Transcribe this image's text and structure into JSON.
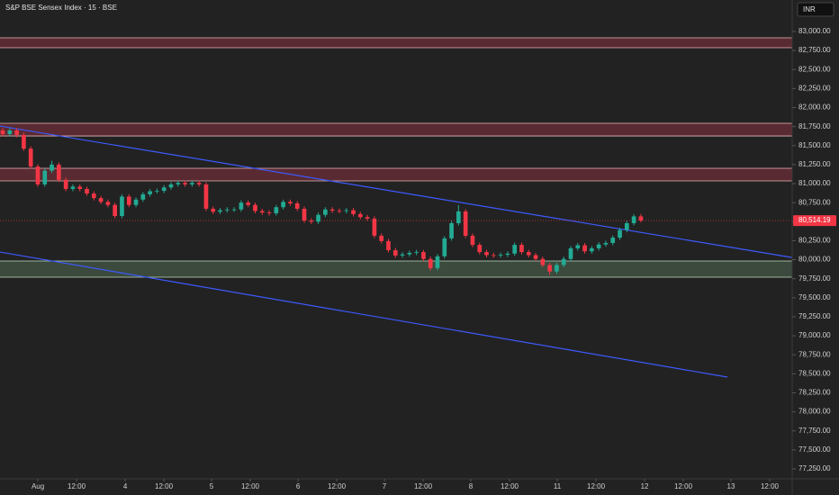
{
  "chart_data": {
    "type": "candlestick",
    "title": "S&P BSE Sensex Index · 15 · BSE",
    "currency": "INR",
    "x": [
      0,
      1,
      2,
      3,
      4,
      5,
      6,
      7,
      8,
      9,
      10,
      11,
      12,
      13,
      14,
      15,
      16,
      17,
      18,
      19,
      20,
      21,
      22,
      23,
      24,
      25,
      26,
      27,
      28,
      29,
      30,
      31,
      32,
      33,
      34,
      35,
      36,
      37,
      38,
      39,
      40,
      41,
      42,
      43,
      44,
      45,
      46,
      47,
      48,
      49,
      50,
      51,
      52,
      53,
      54,
      55,
      56,
      57,
      58,
      59,
      60,
      61,
      62,
      63,
      64,
      65,
      66,
      67,
      68,
      69,
      70,
      71,
      72,
      73,
      74,
      75,
      76,
      77,
      78,
      79,
      80,
      81,
      82,
      83,
      84,
      85,
      86,
      87,
      88,
      89,
      90,
      91
    ],
    "open": [
      81700,
      81650,
      81700,
      81640,
      81460,
      81225,
      80990,
      81170,
      81250,
      81050,
      80930,
      80960,
      80930,
      80870,
      80810,
      80760,
      80720,
      80575,
      80830,
      80720,
      80790,
      80860,
      80900,
      80905,
      80950,
      80990,
      81010,
      80990,
      81010,
      80990,
      80670,
      80630,
      80650,
      80660,
      80660,
      80750,
      80720,
      80640,
      80620,
      80610,
      80690,
      80760,
      80740,
      80670,
      80515,
      80500,
      80590,
      80660,
      80645,
      80640,
      80650,
      80600,
      80560,
      80540,
      80315,
      80245,
      80125,
      80055,
      80070,
      80090,
      80100,
      80010,
      79890,
      80045,
      80280,
      80480,
      80635,
      80315,
      80195,
      80100,
      80060,
      80055,
      80065,
      80080,
      80195,
      80100,
      80060,
      80010,
      79930,
      79845,
      79930,
      80010,
      80150,
      80190,
      80110,
      80150,
      80200,
      80220,
      80290,
      80390,
      80480,
      80570
    ],
    "high": [
      81730,
      81730,
      81730,
      81670,
      81490,
      81255,
      81200,
      81300,
      81280,
      81080,
      80990,
      80990,
      80960,
      80900,
      80840,
      80790,
      80750,
      80860,
      80860,
      80820,
      80890,
      80930,
      80935,
      80980,
      81020,
      81040,
      81040,
      81040,
      81040,
      81020,
      80700,
      80680,
      80690,
      80690,
      80780,
      80780,
      80750,
      80670,
      80650,
      80720,
      80790,
      80790,
      80770,
      80700,
      80545,
      80620,
      80690,
      80690,
      80675,
      80680,
      80680,
      80630,
      80590,
      80570,
      80345,
      80275,
      80155,
      80100,
      80120,
      80130,
      80130,
      80040,
      80075,
      80310,
      80510,
      80720,
      80665,
      80345,
      80225,
      80130,
      80090,
      80095,
      80110,
      80225,
      80225,
      80130,
      80090,
      80040,
      79960,
      79960,
      80040,
      80180,
      80220,
      80220,
      80180,
      80230,
      80250,
      80320,
      80420,
      80510,
      80600,
      80600
    ],
    "low": [
      81620,
      81620,
      81610,
      81430,
      81195,
      80960,
      80960,
      81140,
      81020,
      80900,
      80900,
      80900,
      80840,
      80780,
      80730,
      80690,
      80545,
      80545,
      80690,
      80690,
      80760,
      80830,
      80870,
      80875,
      80920,
      80960,
      80960,
      80960,
      80960,
      80640,
      80600,
      80600,
      80620,
      80630,
      80630,
      80690,
      80610,
      80590,
      80580,
      80580,
      80660,
      80710,
      80640,
      80485,
      80470,
      80470,
      80560,
      80615,
      80610,
      80610,
      80570,
      80530,
      80510,
      80285,
      80215,
      80095,
      80025,
      80025,
      80040,
      80060,
      79980,
      79860,
      79860,
      80015,
      80250,
      80450,
      80285,
      80165,
      80070,
      80030,
      80025,
      80025,
      80035,
      80050,
      80070,
      80030,
      79980,
      79900,
      79800,
      79815,
      79900,
      79980,
      80120,
      80080,
      80080,
      80120,
      80170,
      80190,
      80260,
      80360,
      80450,
      80490
    ],
    "close": [
      81650,
      81700,
      81640,
      81460,
      81225,
      80990,
      81170,
      81250,
      81050,
      80930,
      80960,
      80930,
      80870,
      80810,
      80760,
      80720,
      80575,
      80830,
      80720,
      80790,
      80860,
      80900,
      80905,
      80950,
      80990,
      81010,
      80990,
      81010,
      80990,
      80670,
      80630,
      80650,
      80660,
      80660,
      80750,
      80720,
      80640,
      80620,
      80610,
      80690,
      80760,
      80740,
      80670,
      80515,
      80500,
      80590,
      80660,
      80645,
      80640,
      80650,
      80600,
      80560,
      80540,
      80315,
      80245,
      80125,
      80055,
      80070,
      80090,
      80100,
      80010,
      79890,
      80045,
      80280,
      80480,
      80635,
      80315,
      80195,
      80100,
      80060,
      80055,
      80065,
      80080,
      80195,
      80100,
      80060,
      80010,
      79930,
      79845,
      79930,
      80010,
      80150,
      80190,
      80110,
      80150,
      80200,
      80220,
      80290,
      80390,
      80480,
      80570,
      80514.19
    ],
    "up_color": "#22ab94",
    "down_color": "#f23645",
    "xlim": [
      -0.39,
      112.58
    ],
    "ylim": [
      77120,
      83414
    ],
    "xticks": [
      {
        "value": 5.01,
        "label": "Aug"
      },
      {
        "value": 10.53,
        "label": "12:00"
      },
      {
        "value": 17.46,
        "label": "4"
      },
      {
        "value": 22.98,
        "label": "12:00"
      },
      {
        "value": 29.78,
        "label": "5"
      },
      {
        "value": 35.3,
        "label": "12:00"
      },
      {
        "value": 42.11,
        "label": "6"
      },
      {
        "value": 47.63,
        "label": "12:00"
      },
      {
        "value": 54.43,
        "label": "7"
      },
      {
        "value": 59.95,
        "label": "12:00"
      },
      {
        "value": 66.75,
        "label": "8"
      },
      {
        "value": 72.27,
        "label": "12:00"
      },
      {
        "value": 79.08,
        "label": "11"
      },
      {
        "value": 84.6,
        "label": "12:00"
      },
      {
        "value": 91.53,
        "label": "12"
      },
      {
        "value": 97.05,
        "label": "12:00"
      },
      {
        "value": 103.85,
        "label": "13"
      },
      {
        "value": 109.37,
        "label": "12:00"
      }
    ],
    "yticks": [
      {
        "value": 77250,
        "label": "77,250.00"
      },
      {
        "value": 77500,
        "label": "77,500.00"
      },
      {
        "value": 77750,
        "label": "77,750.00"
      },
      {
        "value": 78000,
        "label": "78,000.00"
      },
      {
        "value": 78250,
        "label": "78,250.00"
      },
      {
        "value": 78500,
        "label": "78,500.00"
      },
      {
        "value": 78750,
        "label": "78,750.00"
      },
      {
        "value": 79000,
        "label": "79,000.00"
      },
      {
        "value": 79250,
        "label": "79,250.00"
      },
      {
        "value": 79500,
        "label": "79,500.00"
      },
      {
        "value": 79750,
        "label": "79,750.00"
      },
      {
        "value": 80000,
        "label": "80,000.00"
      },
      {
        "value": 80250,
        "label": "80,250.00"
      },
      {
        "value": 80500,
        "label": "80,500.00"
      },
      {
        "value": 80750,
        "label": "80,750.00"
      },
      {
        "value": 81000,
        "label": "81,000.00"
      },
      {
        "value": 81250,
        "label": "81,250.00"
      },
      {
        "value": 81500,
        "label": "81,500.00"
      },
      {
        "value": 81750,
        "label": "81,750.00"
      },
      {
        "value": 82000,
        "label": "82,000.00"
      },
      {
        "value": 82250,
        "label": "82,250.00"
      },
      {
        "value": 82500,
        "label": "82,500.00"
      },
      {
        "value": 82750,
        "label": "82,750.00"
      },
      {
        "value": 83000,
        "label": "83,000.00"
      }
    ],
    "zones": [
      {
        "low": 82787,
        "high": 82917,
        "color": "#5a2a32",
        "border": "#e8b8b8"
      },
      {
        "low": 81627,
        "high": 81793,
        "color": "#5a2a32",
        "border": "#e8b8b8"
      },
      {
        "low": 81036,
        "high": 81202,
        "color": "#5a2a32",
        "border": "#e8b8b8"
      },
      {
        "low": 79770,
        "high": 79983,
        "color": "#3b4a3d",
        "border": "#c0dcc0"
      }
    ],
    "trendlines": [
      {
        "x": [
          -0.39,
          112.58
        ],
        "y": [
          81757,
          80029
        ],
        "color": "#3d5afe"
      },
      {
        "x": [
          -0.39,
          103.34
        ],
        "y": [
          80101,
          78457
        ],
        "color": "#3d5afe"
      }
    ],
    "last_price": {
      "value": 80514.19,
      "label": "80,514.19",
      "color": "#f23645"
    }
  }
}
